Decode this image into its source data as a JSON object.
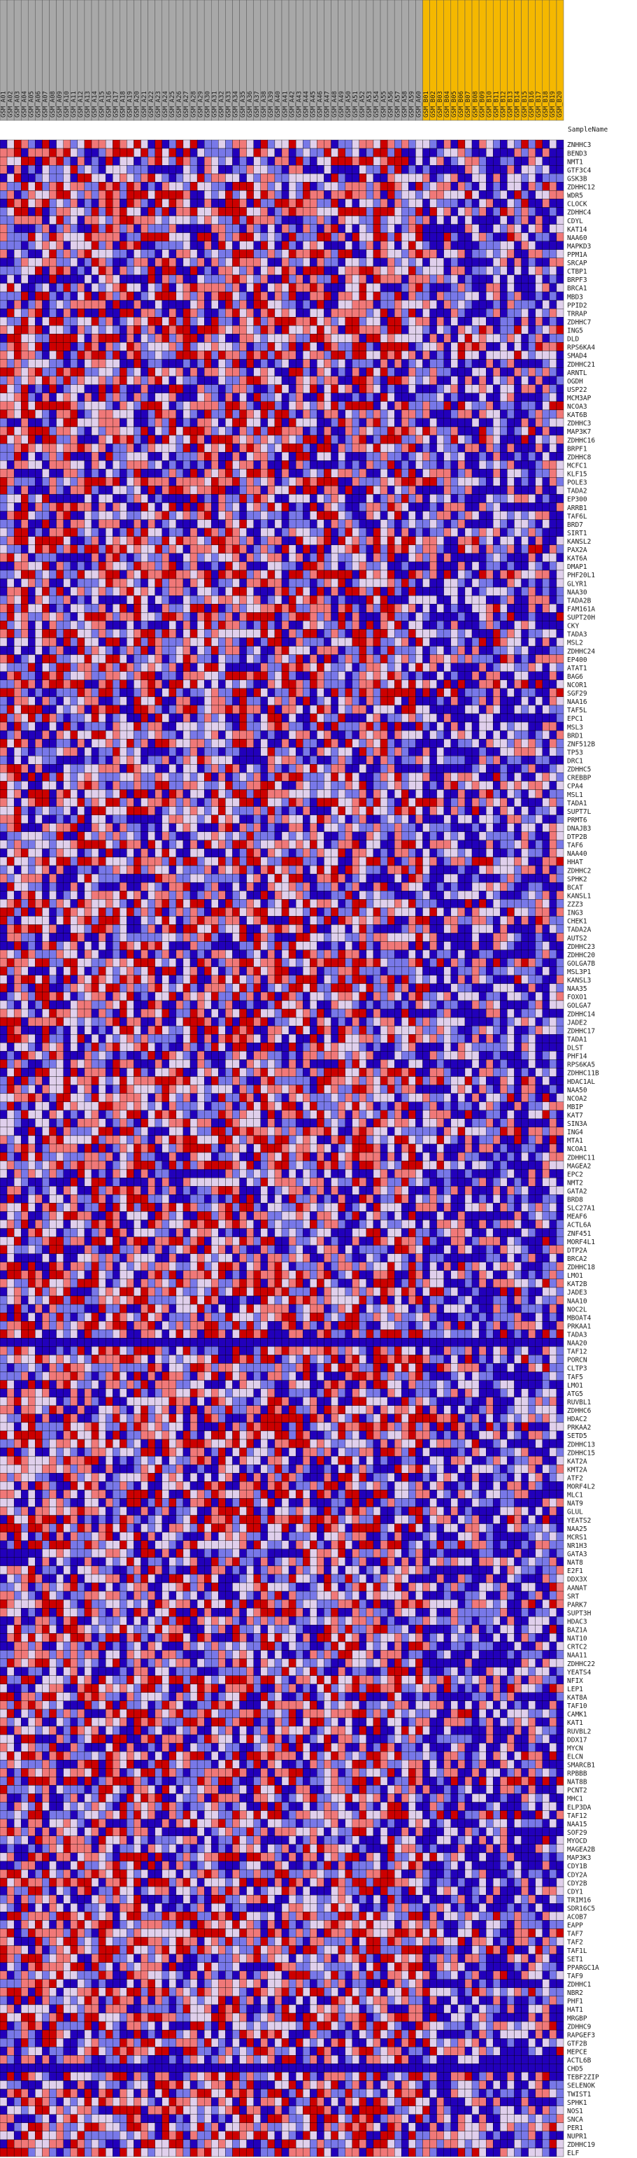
{
  "chart_data": {
    "type": "heatmap",
    "title": "",
    "corner_label": "SampleName",
    "colors": {
      "high": "#cc0000",
      "mid_high": "#f07878",
      "neutral": "#e0d0ec",
      "mid_low": "#7878e8",
      "low": "#2200bb",
      "group_a_header": "#a8a8a8",
      "group_b_header": "#f5b800",
      "grid": "#000000"
    },
    "columns": [
      {
        "name": "GSM_A01",
        "group": "a"
      },
      {
        "name": "GSM_A02",
        "group": "a"
      },
      {
        "name": "GSM_A03",
        "group": "a"
      },
      {
        "name": "GSM_A04",
        "group": "a"
      },
      {
        "name": "GSM_A05",
        "group": "a"
      },
      {
        "name": "GSM_A06",
        "group": "a"
      },
      {
        "name": "GSM_A07",
        "group": "a"
      },
      {
        "name": "GSM_A08",
        "group": "a"
      },
      {
        "name": "GSM_A09",
        "group": "a"
      },
      {
        "name": "GSM_A10",
        "group": "a"
      },
      {
        "name": "GSM_A11",
        "group": "a"
      },
      {
        "name": "GSM_A12",
        "group": "a"
      },
      {
        "name": "GSM_A13",
        "group": "a"
      },
      {
        "name": "GSM_A14",
        "group": "a"
      },
      {
        "name": "GSM_A15",
        "group": "a"
      },
      {
        "name": "GSM_A16",
        "group": "a"
      },
      {
        "name": "GSM_A17",
        "group": "a"
      },
      {
        "name": "GSM_A18",
        "group": "a"
      },
      {
        "name": "GSM_A19",
        "group": "a"
      },
      {
        "name": "GSM_A20",
        "group": "a"
      },
      {
        "name": "GSM_A21",
        "group": "a"
      },
      {
        "name": "GSM_A22",
        "group": "a"
      },
      {
        "name": "GSM_A23",
        "group": "a"
      },
      {
        "name": "GSM_A24",
        "group": "a"
      },
      {
        "name": "GSM_A25",
        "group": "a"
      },
      {
        "name": "GSM_A26",
        "group": "a"
      },
      {
        "name": "GSM_A27",
        "group": "a"
      },
      {
        "name": "GSM_A28",
        "group": "a"
      },
      {
        "name": "GSM_A29",
        "group": "a"
      },
      {
        "name": "GSM_A30",
        "group": "a"
      },
      {
        "name": "GSM_A31",
        "group": "a"
      },
      {
        "name": "GSM_A32",
        "group": "a"
      },
      {
        "name": "GSM_A33",
        "group": "a"
      },
      {
        "name": "GSM_A34",
        "group": "a"
      },
      {
        "name": "GSM_A35",
        "group": "a"
      },
      {
        "name": "GSM_A36",
        "group": "a"
      },
      {
        "name": "GSM_A37",
        "group": "a"
      },
      {
        "name": "GSM_A38",
        "group": "a"
      },
      {
        "name": "GSM_A39",
        "group": "a"
      },
      {
        "name": "GSM_A40",
        "group": "a"
      },
      {
        "name": "GSM_A41",
        "group": "a"
      },
      {
        "name": "GSM_A42",
        "group": "a"
      },
      {
        "name": "GSM_A43",
        "group": "a"
      },
      {
        "name": "GSM_A44",
        "group": "a"
      },
      {
        "name": "GSM_A45",
        "group": "a"
      },
      {
        "name": "GSM_A46",
        "group": "a"
      },
      {
        "name": "GSM_A47",
        "group": "a"
      },
      {
        "name": "GSM_A48",
        "group": "a"
      },
      {
        "name": "GSM_A49",
        "group": "a"
      },
      {
        "name": "GSM_A50",
        "group": "a"
      },
      {
        "name": "GSM_A51",
        "group": "a"
      },
      {
        "name": "GSM_A52",
        "group": "a"
      },
      {
        "name": "GSM_A53",
        "group": "a"
      },
      {
        "name": "GSM_A54",
        "group": "a"
      },
      {
        "name": "GSM_A55",
        "group": "a"
      },
      {
        "name": "GSM_A56",
        "group": "a"
      },
      {
        "name": "GSM_A57",
        "group": "a"
      },
      {
        "name": "GSM_A58",
        "group": "a"
      },
      {
        "name": "GSM_A59",
        "group": "a"
      },
      {
        "name": "GSM_A60",
        "group": "a"
      },
      {
        "name": "GSM_B01",
        "group": "b"
      },
      {
        "name": "GSM_B02",
        "group": "b"
      },
      {
        "name": "GSM_B03",
        "group": "b"
      },
      {
        "name": "GSM_B04",
        "group": "b"
      },
      {
        "name": "GSM_B05",
        "group": "b"
      },
      {
        "name": "GSM_B06",
        "group": "b"
      },
      {
        "name": "GSM_B07",
        "group": "b"
      },
      {
        "name": "GSM_B08",
        "group": "b"
      },
      {
        "name": "GSM_B09",
        "group": "b"
      },
      {
        "name": "GSM_B10",
        "group": "b"
      },
      {
        "name": "GSM_B11",
        "group": "b"
      },
      {
        "name": "GSM_B12",
        "group": "b"
      },
      {
        "name": "GSM_B13",
        "group": "b"
      },
      {
        "name": "GSM_B14",
        "group": "b"
      },
      {
        "name": "GSM_B15",
        "group": "b"
      },
      {
        "name": "GSM_B16",
        "group": "b"
      },
      {
        "name": "GSM_B17",
        "group": "b"
      },
      {
        "name": "GSM_B18",
        "group": "b"
      },
      {
        "name": "GSM_B19",
        "group": "b"
      },
      {
        "name": "GSM_B20",
        "group": "b"
      }
    ],
    "rows": [
      "ZNHHC3",
      "BEND3",
      "NMT1",
      "GTF3C4",
      "GSK3B",
      "ZDHHC12",
      "WDR5",
      "CLOCK",
      "ZDHHC4",
      "CDYL",
      "KAT14",
      "NAA60",
      "MAPKD3",
      "PPM1A",
      "SRCAP",
      "CTBP1",
      "BRPF3",
      "BRCA1",
      "MBD3",
      "PPID2",
      "TRRAP",
      "ZDHHC7",
      "ING5",
      "DLD",
      "RPS6KA4",
      "SMAD4",
      "ZDHHC21",
      "ARNTL",
      "OGDH",
      "USP22",
      "MCM3AP",
      "NCOA3",
      "KAT6B",
      "ZDHHC3",
      "MAP3K7",
      "ZDHHC16",
      "BRPF1",
      "ZDHHC8",
      "MCFC1",
      "KLF15",
      "POLE3",
      "TADA2",
      "EP300",
      "ARRB1",
      "TAF6L",
      "BRD7",
      "SIRT1",
      "KANSL2",
      "PAX2A",
      "KAT6A",
      "DMAP1",
      "PHF20L1",
      "GLYR1",
      "NAA30",
      "TADA2B",
      "FAM161A",
      "SUPT20H",
      "CKY",
      "TADA3",
      "MSL2",
      "ZDHHC24",
      "EP400",
      "ATAT1",
      "BAG6",
      "NCOR1",
      "SGF29",
      "NAA16",
      "TAF5L",
      "EPC1",
      "MSL3",
      "BRD1",
      "ZNF512B",
      "TP53",
      "DRC1",
      "ZDHHC5",
      "CREBBP",
      "CPA4",
      "MSL1",
      "TADA1",
      "SUPT7L",
      "PRMT6",
      "DNAJB3",
      "DTP2B",
      "TAF6",
      "NAA40",
      "HHAT",
      "ZDHHC2",
      "SPHK2",
      "BCAT",
      "KANSL1",
      "ZZZ3",
      "ING3",
      "CHEK1",
      "TADA2A",
      "AUTS2",
      "ZDHHC23",
      "ZDHHC20",
      "GOLGA7B",
      "MSL3P1",
      "KANSL3",
      "NAA35",
      "FOXO1",
      "GOLGA7",
      "ZDHHC14",
      "JADE2",
      "ZDHHC17",
      "TADA1",
      "DLST",
      "PHF14",
      "RPS6KA5",
      "ZDHHC11B",
      "HDAC1AL",
      "NAA50",
      "NCOA2",
      "MBIP",
      "KAT7",
      "SIN3A",
      "ING4",
      "MTA1",
      "NCOA1",
      "ZDHHC11",
      "MAGEA2",
      "EPC2",
      "NMT2",
      "GATA2",
      "BRD8",
      "SLC27A1",
      "MEAF6",
      "ACTL6A",
      "ZNF451",
      "MORF4L1",
      "DTP2A",
      "BRCA2",
      "ZDHHC18",
      "LMO1",
      "KAT2B",
      "JADE3",
      "NAA10",
      "NOC2L",
      "MBOAT4",
      "PRKAA1",
      "TADA3",
      "NAA20",
      "TAF12",
      "PORCN",
      "CLTP3",
      "TAF5",
      "LMO1",
      "ATG5",
      "RUVBL1",
      "ZDHHC6",
      "HDAC2",
      "PRKAA2",
      "SETD5",
      "ZDHHC13",
      "ZDHHC15",
      "KAT2A",
      "KMT2A",
      "ATF2",
      "MORF4L2",
      "MLC1",
      "NAT9",
      "GLUL",
      "YEATS2",
      "NAA25",
      "MCRS1",
      "NR1H3",
      "GATA3",
      "NAT8",
      "E2F1",
      "DDX3X",
      "AANAT",
      "SRT",
      "PARK7",
      "SUPT3H",
      "HDAC3",
      "BAZ1A",
      "NAT10",
      "CRTC2",
      "NAA11",
      "ZDHHC22",
      "YEATS4",
      "NFIX",
      "LEP1",
      "KAT8A",
      "TAF10",
      "CAMK1",
      "KAT1",
      "RUVBL2",
      "DDX17",
      "MYCN",
      "ELCN",
      "SMARCB1",
      "RPBBB",
      "NAT8B",
      "PCNT2",
      "MHC1",
      "ELP3DA",
      "TAF12",
      "NAA15",
      "SOF29",
      "MYOCD",
      "MAGEA2B",
      "MAP3K3",
      "CDY1B",
      "CDY2A",
      "CDY2B",
      "CDY1",
      "TRIM16",
      "SDR16C5",
      "ACOB7",
      "EAPP",
      "TAF7",
      "TAF2",
      "TAF1L",
      "SET1",
      "PPARGC1A",
      "TAF9",
      "ZDHHC1",
      "NBR2",
      "PHF1",
      "HAT1",
      "MRGBP",
      "ZDHHC9",
      "RAPGEF3",
      "GTF2B",
      "MEPCE",
      "ACTL6B",
      "CHD5",
      "TEBF2ZIP",
      "SELENOK",
      "TWIST1",
      "SPHK1",
      "NOS1",
      "SNCA",
      "PER1",
      "NUPR1",
      "ZDHHC19",
      "ELF"
    ]
  }
}
